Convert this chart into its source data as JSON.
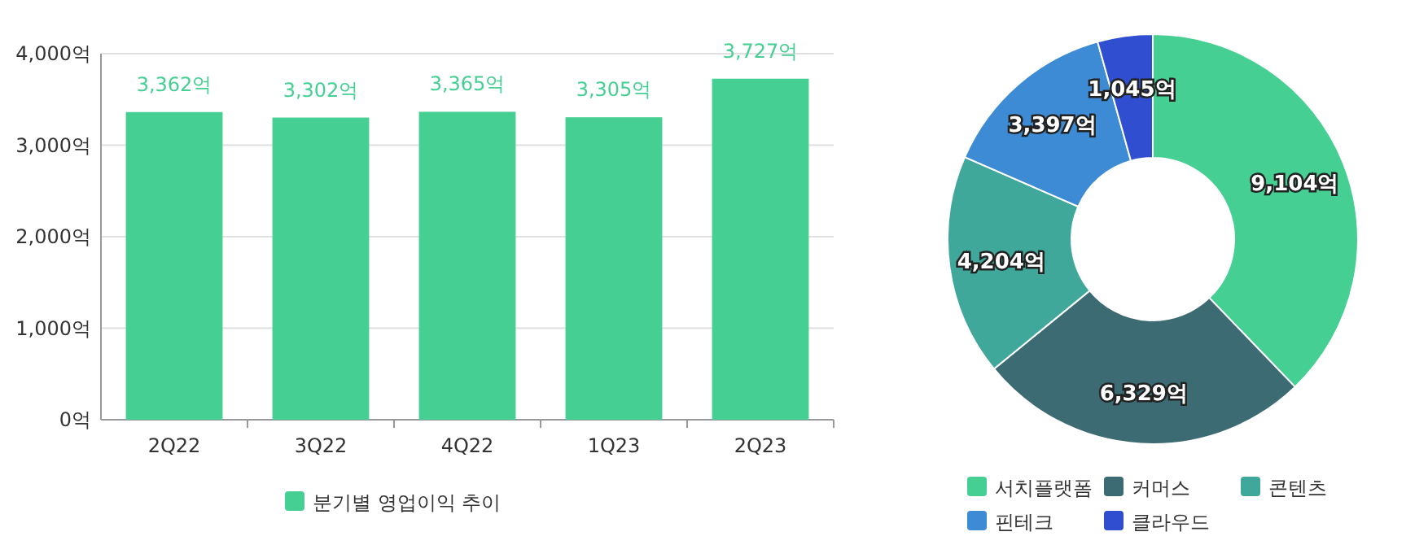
{
  "chart_data": [
    {
      "type": "bar",
      "categories": [
        "2Q22",
        "3Q22",
        "4Q22",
        "1Q23",
        "2Q23"
      ],
      "series": [
        {
          "name": "분기별 영업이익 추이",
          "color": "#45cf92",
          "values": [
            3362,
            3302,
            3365,
            3305,
            3727
          ],
          "value_labels": [
            "3,362억",
            "3,302억",
            "3,365억",
            "3,305억",
            "3,727억"
          ]
        }
      ],
      "ylim": [
        0,
        4000
      ],
      "yticks": [
        {
          "value": 0,
          "label": "0억"
        },
        {
          "value": 1000,
          "label": "1,000억"
        },
        {
          "value": 2000,
          "label": "2,000억"
        },
        {
          "value": 3000,
          "label": "3,000억"
        },
        {
          "value": 4000,
          "label": "4,000억"
        }
      ],
      "grid": "y",
      "legend": "bottom"
    },
    {
      "type": "donut",
      "categories": [
        "서치플랫폼",
        "커머스",
        "콘텐츠",
        "핀테크",
        "클라우드"
      ],
      "values": [
        9104,
        6329,
        4204,
        3397,
        1045
      ],
      "colors": [
        "#45cf92",
        "#3d6b73",
        "#40a89a",
        "#3d8bd4",
        "#2f4fd0"
      ],
      "value_labels": [
        "9,104억",
        "6,329억",
        "4,204억",
        "3,397억",
        "1,045억"
      ],
      "legend": "bottom"
    }
  ]
}
